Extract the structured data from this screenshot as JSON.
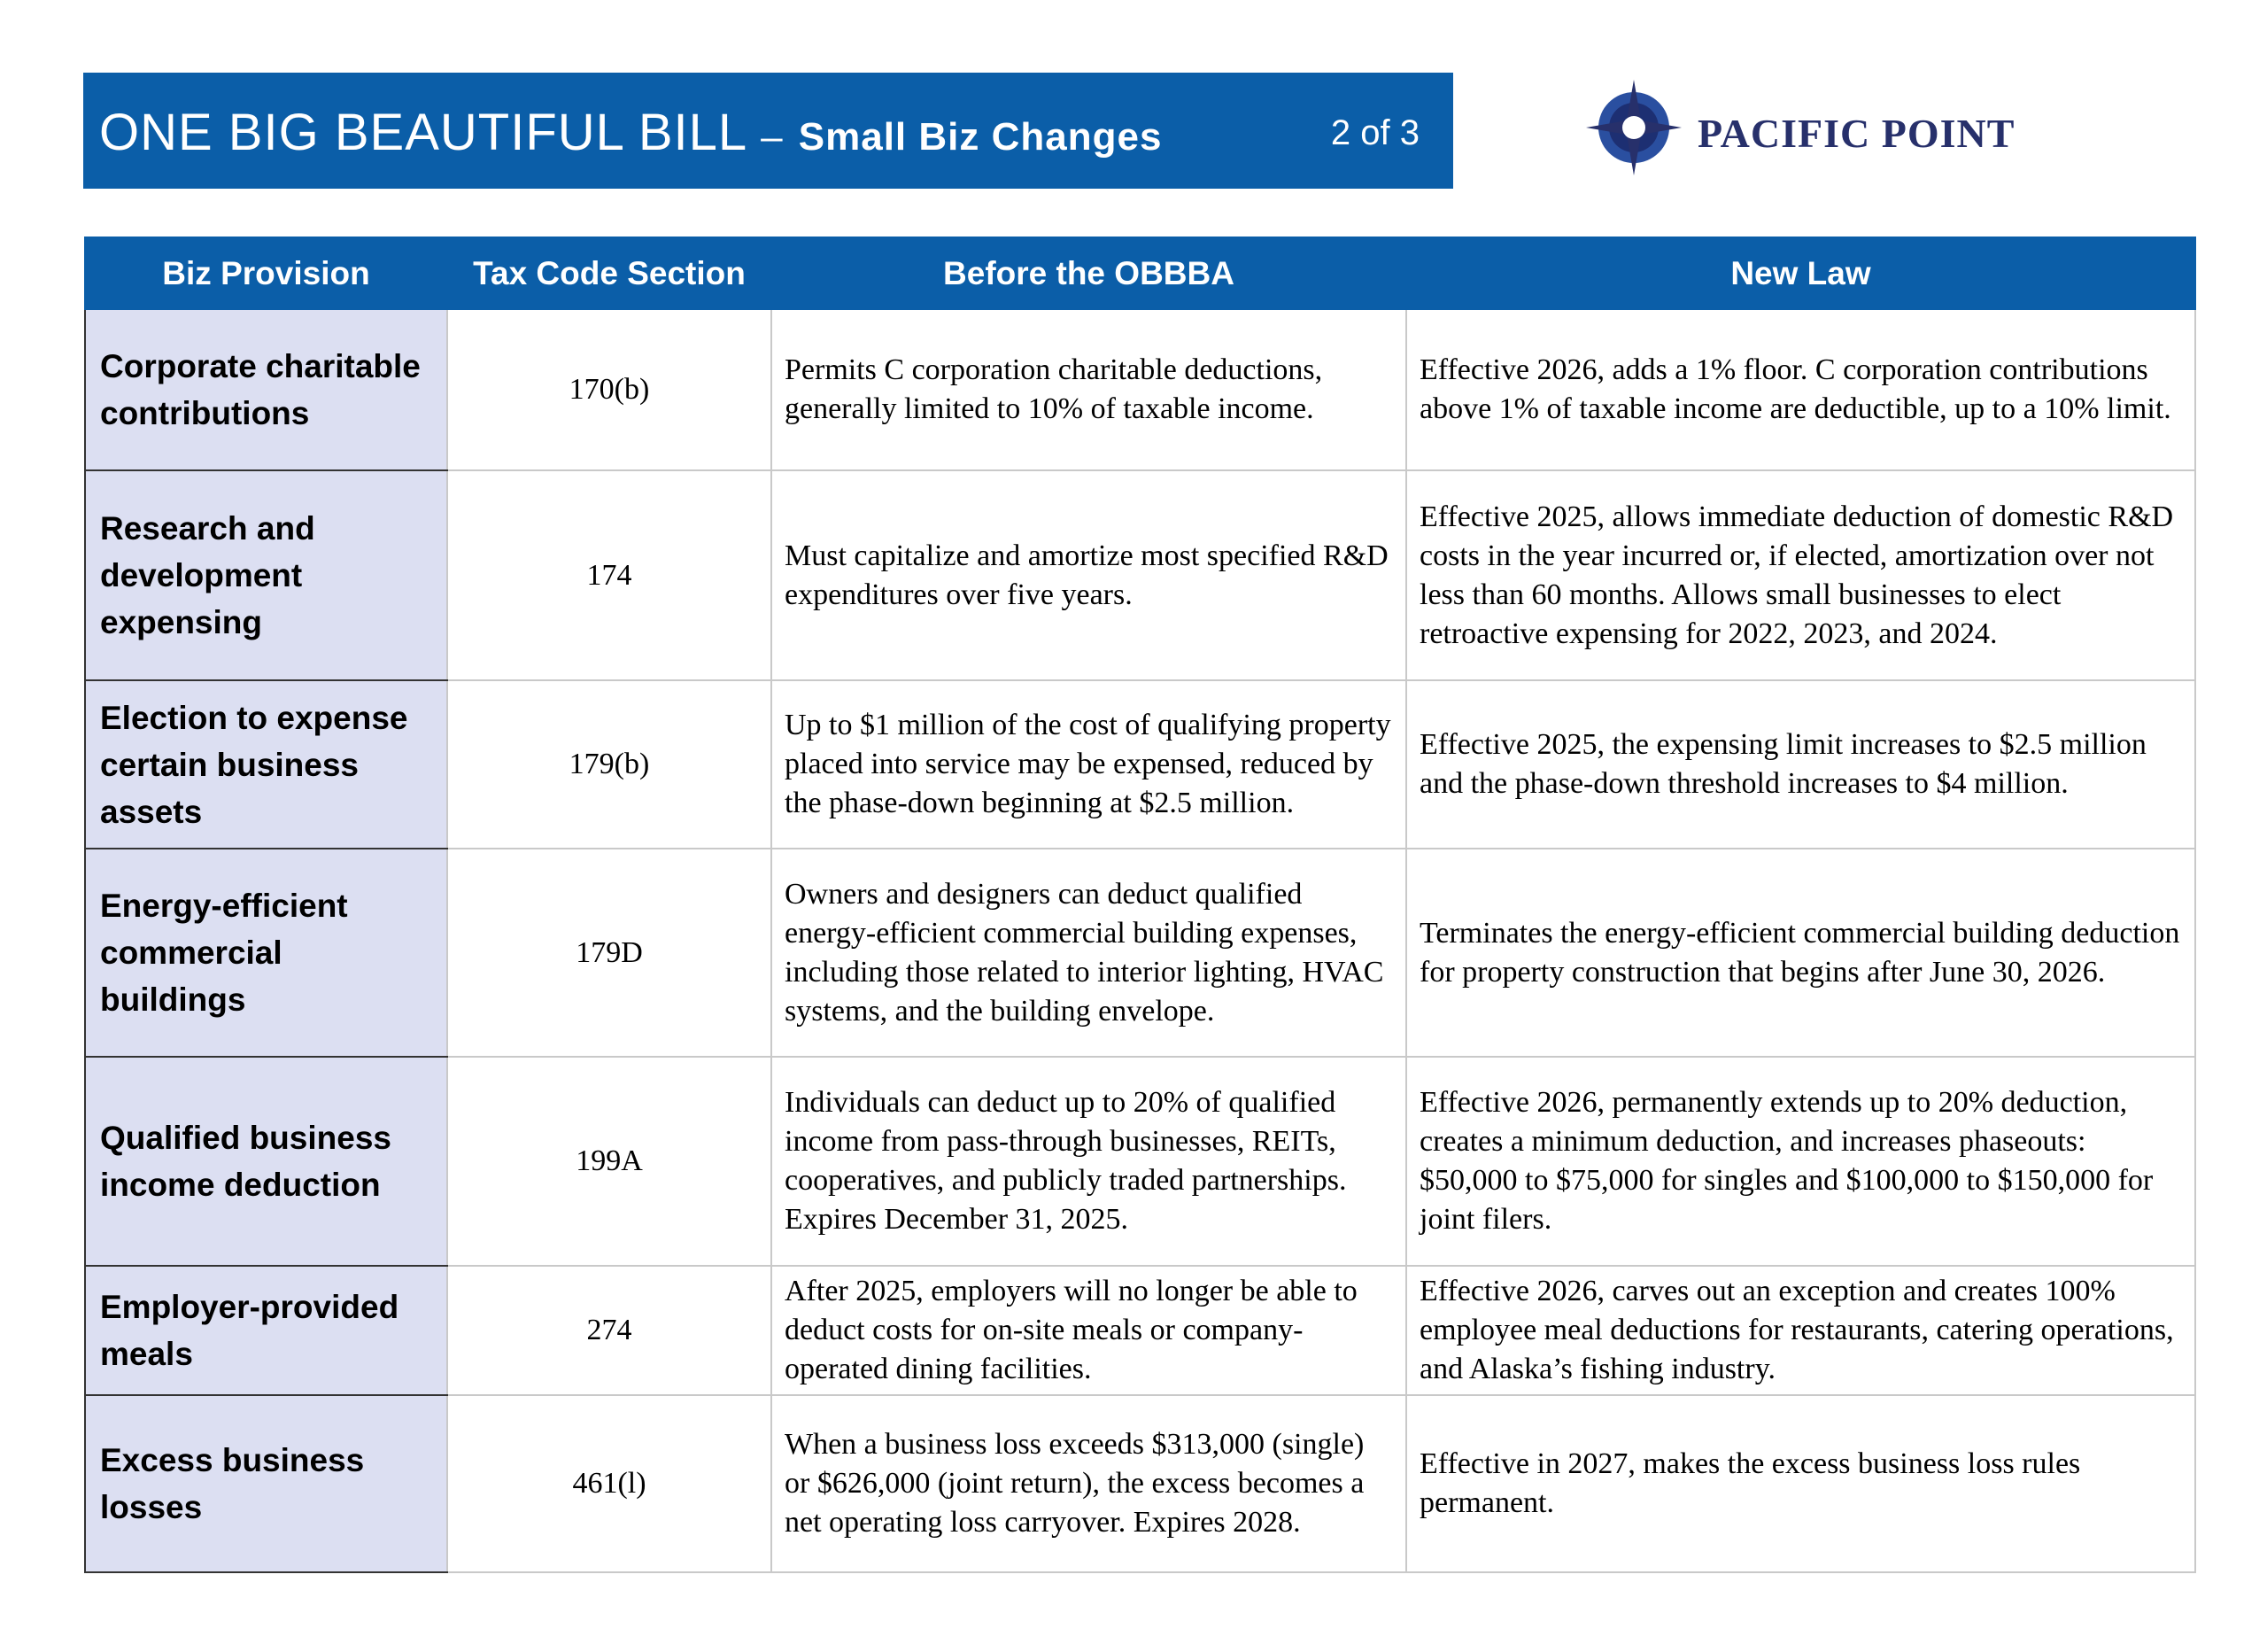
{
  "header": {
    "title": "ONE BIG BEAUTIFUL BILL",
    "dash": "–",
    "subtitle": "Small Biz Changes",
    "page": "2 of 3"
  },
  "logo": {
    "text": "PACIFIC POINT"
  },
  "table": {
    "columns": [
      "Biz Provision",
      "Tax Code Section",
      "Before the OBBBA",
      "New Law"
    ],
    "rows": [
      [
        "Corporate charitable contributions",
        "170(b)",
        "Permits C corporation charitable deductions, generally limited to 10% of taxable income.",
        "Effective 2026, adds a 1% floor. C corporation contributions above 1% of taxable income are deductible, up to a 10% limit."
      ],
      [
        "Research and development expensing",
        "174",
        "Must capitalize and amortize most specified R&D expenditures over five years.",
        "Effective 2025, allows immediate deduction of domestic R&D costs in the year incurred or, if elected, amortization over not less than 60 months. Allows small businesses to elect retroactive expensing for 2022, 2023, and 2024."
      ],
      [
        "Election to expense certain business assets",
        "179(b)",
        "Up to $1 million of the cost of qualifying property placed into service may be expensed, reduced by the phase-down beginning at $2.5 million.",
        "Effective 2025, the expensing limit increases to $2.5 million and the phase-down threshold increases to $4 million."
      ],
      [
        "Energy-efficient commercial buildings",
        "179D",
        "Owners and designers can deduct qualified energy-efficient commercial building expenses, including those related to interior lighting, HVAC systems, and the building envelope.",
        "Terminates the energy-efficient commercial building deduction for property construction that begins after June 30, 2026."
      ],
      [
        "Qualified business income deduction",
        "199A",
        "Individuals can deduct up to 20% of qualified income from pass-through businesses, REITs, cooperatives, and publicly traded partnerships. Expires December 31, 2025.",
        "Effective 2026, permanently extends up to 20% deduction, creates a minimum deduction, and increases phaseouts: $50,000 to $75,000 for singles and $100,000 to $150,000 for joint filers."
      ],
      [
        "Employer-provided meals",
        "274",
        "After 2025, employers will no longer be able to deduct costs for on-site meals or company-operated dining facilities.",
        "Effective 2026, carves out an exception and creates 100% employee meal deductions for restaurants, catering operations, and Alaska’s fishing industry."
      ],
      [
        "Excess business losses",
        "461(l)",
        "When a business loss exceeds $313,000 (single) or $626,000 (joint return), the excess becomes a net operating loss carryover. Expires 2028.",
        "Effective in 2027, makes the excess business loss rules permanent."
      ]
    ]
  }
}
